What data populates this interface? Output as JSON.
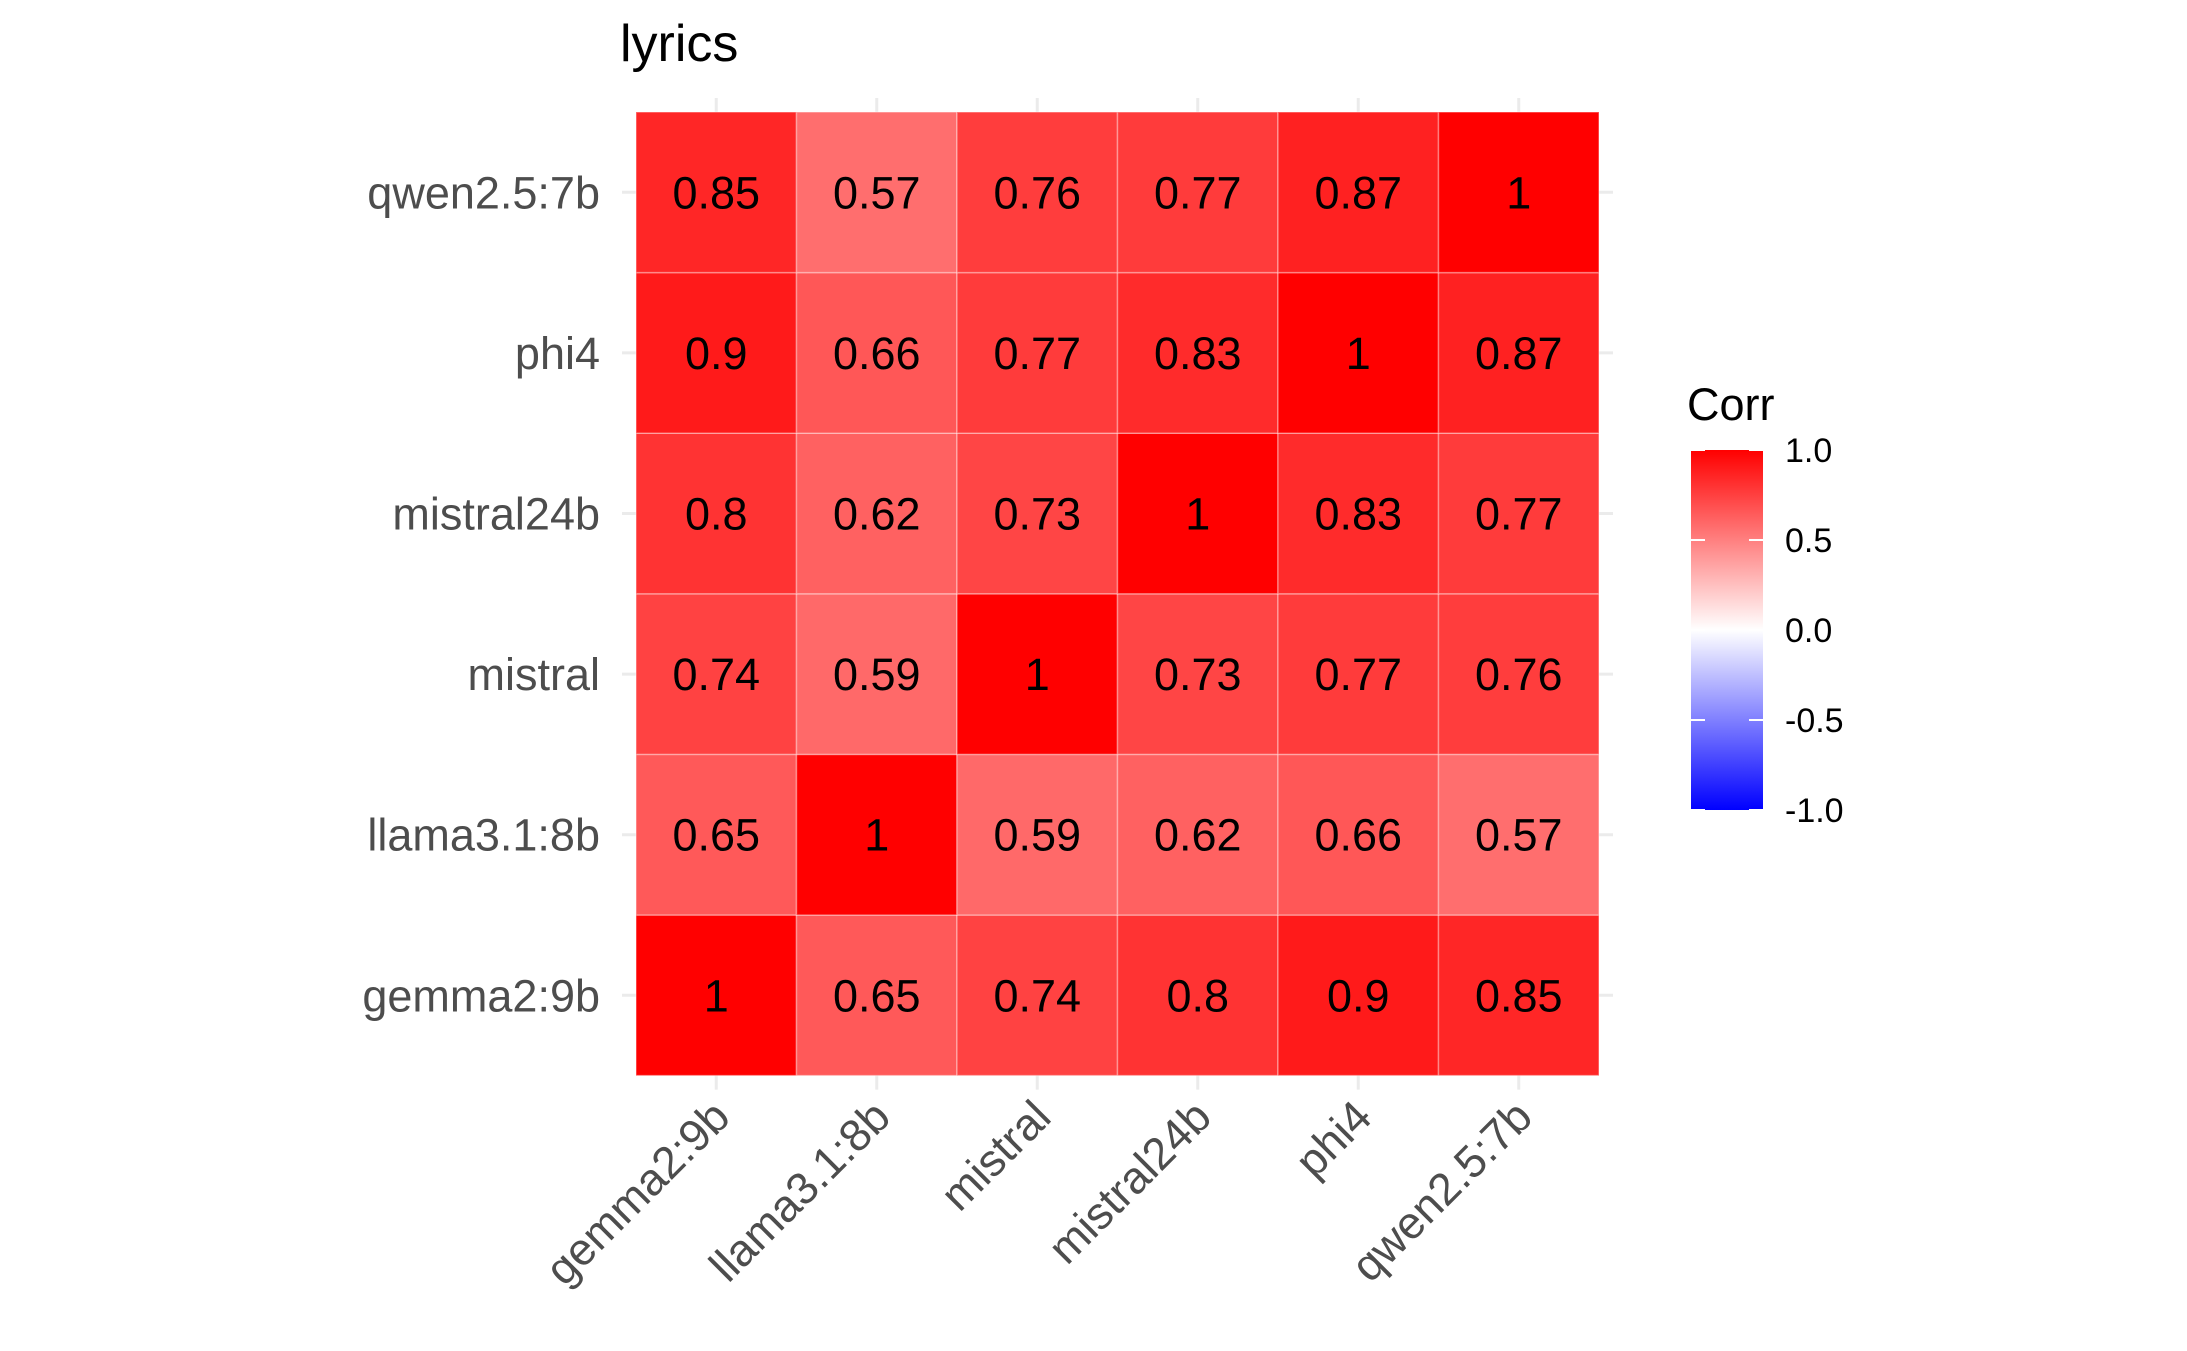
{
  "chart_data": {
    "type": "heatmap",
    "title": "lyrics",
    "x_categories": [
      "gemma2:9b",
      "llama3.1:8b",
      "mistral",
      "mistral24b",
      "phi4",
      "qwen2.5:7b"
    ],
    "y_categories": [
      "gemma2:9b",
      "llama3.1:8b",
      "mistral",
      "mistral24b",
      "phi4",
      "qwen2.5:7b"
    ],
    "values": [
      [
        1,
        0.65,
        0.74,
        0.8,
        0.9,
        0.85
      ],
      [
        0.65,
        1,
        0.59,
        0.62,
        0.66,
        0.57
      ],
      [
        0.74,
        0.59,
        1,
        0.73,
        0.77,
        0.76
      ],
      [
        0.8,
        0.62,
        0.73,
        1,
        0.83,
        0.77
      ],
      [
        0.9,
        0.66,
        0.77,
        0.83,
        1,
        0.87
      ],
      [
        0.85,
        0.57,
        0.76,
        0.77,
        0.87,
        1
      ]
    ],
    "labels": [
      [
        "1",
        "0.65",
        "0.74",
        "0.8",
        "0.9",
        "0.85"
      ],
      [
        "0.65",
        "1",
        "0.59",
        "0.62",
        "0.66",
        "0.57"
      ],
      [
        "0.74",
        "0.59",
        "1",
        "0.73",
        "0.77",
        "0.76"
      ],
      [
        "0.8",
        "0.62",
        "0.73",
        "1",
        "0.83",
        "0.77"
      ],
      [
        "0.9",
        "0.66",
        "0.77",
        "0.83",
        "1",
        "0.87"
      ],
      [
        "0.85",
        "0.57",
        "0.76",
        "0.77",
        "0.87",
        "1"
      ]
    ],
    "legend": {
      "title": "Corr",
      "range": [
        -1,
        1
      ],
      "ticks": [
        1.0,
        0.5,
        0.0,
        -0.5,
        -1.0
      ],
      "tick_labels": [
        "1.0",
        "0.5",
        "0.0",
        "-0.5",
        "-1.0"
      ],
      "placement": "right"
    },
    "colors": {
      "low": "#0000ff",
      "mid": "#ffffff",
      "high": "#ff0000"
    },
    "grid": true
  }
}
